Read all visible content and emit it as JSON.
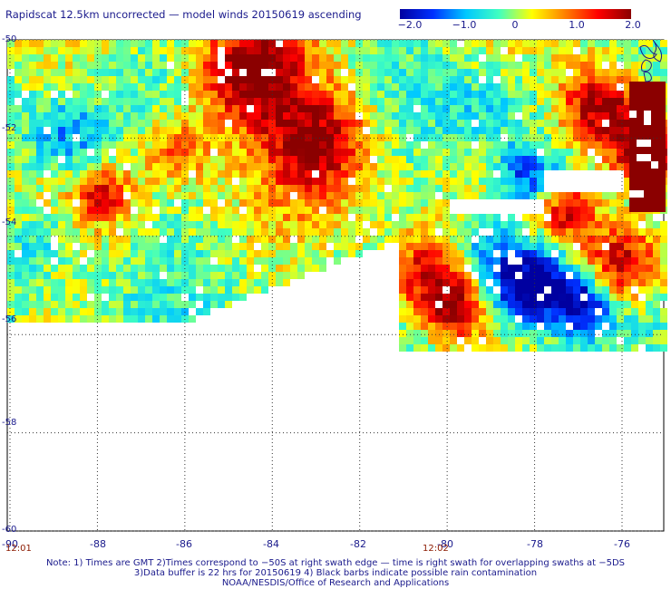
{
  "title": "Rapidscat 12.5km uncorrected — model winds 20150619 ascending",
  "colorbar": {
    "ticks": [
      "−2.0",
      "−1.0",
      "0",
      "1.0",
      "2.0"
    ],
    "tick_values": [
      -2.0,
      -1.0,
      0,
      1.0,
      2.0
    ],
    "colors": [
      "#0000a0",
      "#0030ff",
      "#00c8ff",
      "#40ffc0",
      "#ffff00",
      "#ff8000",
      "#ff0000",
      "#8b0000"
    ]
  },
  "map": {
    "lat_labels": [
      "-50",
      "-52",
      "-54",
      "-56",
      "-58",
      "-60"
    ],
    "lat_values": [
      -50,
      -52,
      -54,
      -56,
      -58,
      -60
    ],
    "lon_labels": [
      "-90",
      "-88",
      "-86",
      "-84",
      "-82",
      "-80",
      "-78",
      "-76"
    ],
    "lon_values": [
      -90,
      -88,
      -86,
      -84,
      -82,
      -80,
      -78,
      -76
    ],
    "time_labels": [
      "12:01",
      "12:02"
    ]
  },
  "notes": [
    "Note: 1) Times are GMT 2)Times correspond to −50S at right swath edge — time is right swath for overlapping swaths at −5DS",
    "3)Data buffer is 22 hrs for 20150619 4) Black barbs indicate possible rain contamination",
    "NOAA/NESDIS/Office of Research and Applications"
  ]
}
